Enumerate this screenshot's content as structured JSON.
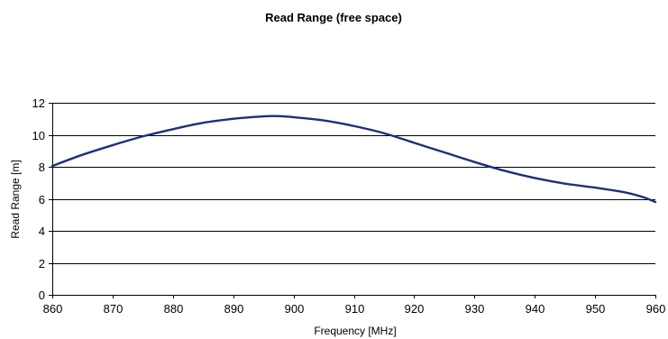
{
  "chart_data": {
    "type": "line",
    "title": "Read Range (free space)",
    "xlabel": "Frequency [MHz]",
    "ylabel": "Read Range [m]",
    "xlim": [
      860,
      960
    ],
    "ylim": [
      0,
      12
    ],
    "x_ticks": [
      860,
      870,
      880,
      890,
      900,
      910,
      920,
      930,
      940,
      950,
      960
    ],
    "y_ticks": [
      0,
      2,
      4,
      6,
      8,
      10,
      12
    ],
    "grid": {
      "horizontal": true,
      "vertical": false
    },
    "legend": "none",
    "series": [
      {
        "color": "#1f2f7a",
        "x": [
          860,
          865,
          870,
          875,
          880,
          885,
          890,
          895,
          897,
          900,
          905,
          910,
          915,
          920,
          925,
          930,
          935,
          940,
          945,
          950,
          955,
          958,
          960
        ],
        "y": [
          8.05,
          8.75,
          9.35,
          9.9,
          10.35,
          10.75,
          11.0,
          11.15,
          11.17,
          11.1,
          10.9,
          10.55,
          10.1,
          9.5,
          8.9,
          8.3,
          7.75,
          7.3,
          6.95,
          6.7,
          6.4,
          6.1,
          5.8
        ]
      }
    ]
  }
}
